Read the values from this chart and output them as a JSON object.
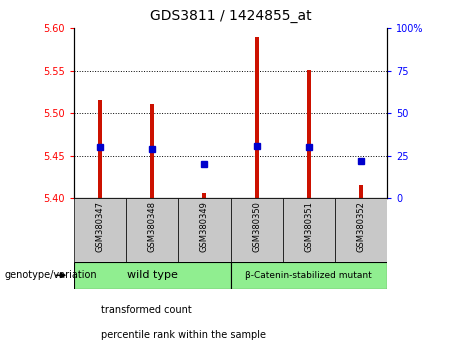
{
  "title": "GDS3811 / 1424855_at",
  "samples": [
    "GSM380347",
    "GSM380348",
    "GSM380349",
    "GSM380350",
    "GSM380351",
    "GSM380352"
  ],
  "bar_bottoms": [
    5.4,
    5.4,
    5.4,
    5.4,
    5.4,
    5.4
  ],
  "bar_tops": [
    5.516,
    5.511,
    5.406,
    5.59,
    5.551,
    5.416
  ],
  "percentile_ranks": [
    30,
    29,
    20,
    31,
    30,
    22
  ],
  "ylim_left": [
    5.4,
    5.6
  ],
  "ylim_right": [
    0,
    100
  ],
  "yticks_left": [
    5.4,
    5.45,
    5.5,
    5.55,
    5.6
  ],
  "yticks_right": [
    0,
    25,
    50,
    75,
    100
  ],
  "bar_color": "#cc1100",
  "square_color": "#0000cc",
  "group1_label": "wild type",
  "group2_label": "β-Catenin-stabilized mutant",
  "group_bg_color": "#90ee90",
  "group_label_prefix": "genotype/variation",
  "legend1": "transformed count",
  "legend2": "percentile rank within the sample",
  "bar_width": 0.08,
  "sample_box_color": "#c8c8c8",
  "title_fontsize": 10,
  "tick_fontsize": 7,
  "label_fontsize": 7
}
